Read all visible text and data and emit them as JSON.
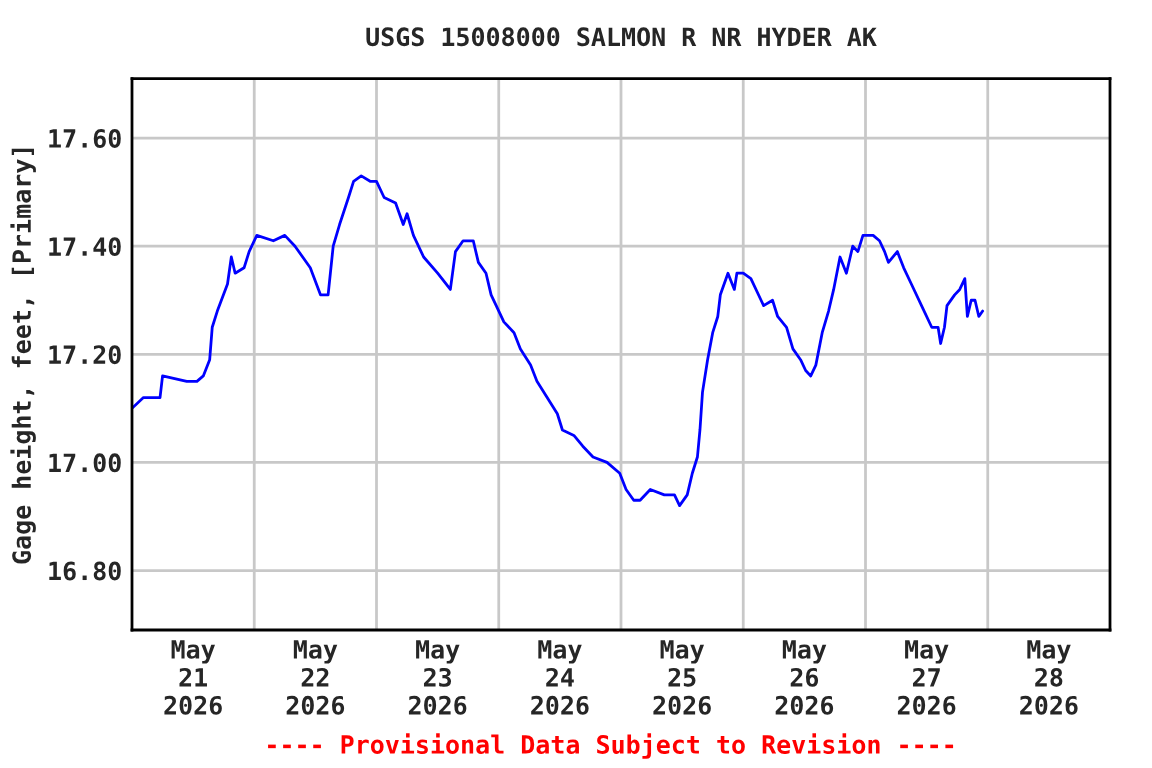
{
  "chart_data": {
    "type": "line",
    "title": "USGS 15008000 SALMON R NR HYDER AK",
    "ylabel": "Gage height, feet, [Primary]",
    "annotations": [
      "---- Provisional Data Subject to Revision ----"
    ],
    "x": [
      "2026-05-21T00:00",
      "2026-05-21T02:15",
      "2026-05-21T05:30",
      "2026-05-21T06:00",
      "2026-05-21T10:45",
      "2026-05-21T12:45",
      "2026-05-21T14:00",
      "2026-05-21T15:15",
      "2026-05-21T15:45",
      "2026-05-21T16:45",
      "2026-05-21T18:45",
      "2026-05-21T19:30",
      "2026-05-21T20:15",
      "2026-05-21T22:00",
      "2026-05-21T23:00",
      "2026-05-22T00:30",
      "2026-05-22T03:45",
      "2026-05-22T06:00",
      "2026-05-22T08:00",
      "2026-05-22T11:00",
      "2026-05-22T13:00",
      "2026-05-22T14:30",
      "2026-05-22T15:30",
      "2026-05-22T16:45",
      "2026-05-22T18:30",
      "2026-05-22T19:30",
      "2026-05-22T21:00",
      "2026-05-22T22:45",
      "2026-05-23T00:00",
      "2026-05-23T01:30",
      "2026-05-23T03:45",
      "2026-05-23T05:15",
      "2026-05-23T06:00",
      "2026-05-23T07:15",
      "2026-05-23T09:15",
      "2026-05-23T12:00",
      "2026-05-23T14:30",
      "2026-05-23T15:30",
      "2026-05-23T17:00",
      "2026-05-23T19:00",
      "2026-05-23T20:00",
      "2026-05-23T21:30",
      "2026-05-23T22:30",
      "2026-05-23T23:30",
      "2026-05-24T01:00",
      "2026-05-24T03:00",
      "2026-05-24T04:15",
      "2026-05-24T06:15",
      "2026-05-24T07:30",
      "2026-05-24T09:30",
      "2026-05-24T11:30",
      "2026-05-24T12:30",
      "2026-05-24T14:45",
      "2026-05-24T16:30",
      "2026-05-24T18:30",
      "2026-05-24T21:15",
      "2026-05-24T23:45",
      "2026-05-25T01:00",
      "2026-05-25T02:30",
      "2026-05-25T03:30",
      "2026-05-25T03:45",
      "2026-05-25T05:45",
      "2026-05-25T08:30",
      "2026-05-25T10:30",
      "2026-05-25T11:30",
      "2026-05-25T13:00",
      "2026-05-25T14:00",
      "2026-05-25T15:00",
      "2026-05-25T15:30",
      "2026-05-25T16:00",
      "2026-05-25T17:00",
      "2026-05-25T18:00",
      "2026-05-25T19:00",
      "2026-05-25T19:30",
      "2026-05-25T21:00",
      "2026-05-25T22:15",
      "2026-05-25T22:45",
      "2026-05-26T00:00",
      "2026-05-26T01:30",
      "2026-05-26T03:30",
      "2026-05-26T04:00",
      "2026-05-26T05:45",
      "2026-05-26T06:45",
      "2026-05-26T08:30",
      "2026-05-26T09:45",
      "2026-05-26T11:15",
      "2026-05-26T12:15",
      "2026-05-26T13:15",
      "2026-05-26T14:15",
      "2026-05-26T15:30",
      "2026-05-26T16:45",
      "2026-05-26T17:45",
      "2026-05-26T19:00",
      "2026-05-26T20:15",
      "2026-05-26T21:30",
      "2026-05-26T22:30",
      "2026-05-26T23:30",
      "2026-05-27T01:30",
      "2026-05-27T02:45",
      "2026-05-27T03:45",
      "2026-05-27T04:30",
      "2026-05-27T06:15",
      "2026-05-27T07:30",
      "2026-05-27T09:00",
      "2026-05-27T11:00",
      "2026-05-27T13:00",
      "2026-05-27T14:15",
      "2026-05-27T14:45",
      "2026-05-27T15:30",
      "2026-05-27T16:00",
      "2026-05-27T17:30",
      "2026-05-27T18:30",
      "2026-05-27T19:30",
      "2026-05-27T20:00",
      "2026-05-27T20:45",
      "2026-05-27T21:30",
      "2026-05-27T22:15",
      "2026-05-27T23:00"
    ],
    "series": [
      {
        "color": "#0000ff",
        "values": [
          17.1,
          17.12,
          17.12,
          17.16,
          17.15,
          17.15,
          17.16,
          17.19,
          17.25,
          17.28,
          17.33,
          17.38,
          17.35,
          17.36,
          17.39,
          17.42,
          17.41,
          17.42,
          17.4,
          17.36,
          17.31,
          17.31,
          17.4,
          17.44,
          17.49,
          17.52,
          17.53,
          17.52,
          17.52,
          17.49,
          17.48,
          17.44,
          17.46,
          17.42,
          17.38,
          17.35,
          17.32,
          17.39,
          17.41,
          17.41,
          17.37,
          17.35,
          17.31,
          17.29,
          17.26,
          17.24,
          17.21,
          17.18,
          17.15,
          17.12,
          17.09,
          17.06,
          17.05,
          17.03,
          17.01,
          17.0,
          16.98,
          16.95,
          16.93,
          16.93,
          16.93,
          16.95,
          16.94,
          16.94,
          16.92,
          16.94,
          16.98,
          17.01,
          17.06,
          17.13,
          17.19,
          17.24,
          17.27,
          17.31,
          17.35,
          17.32,
          17.35,
          17.35,
          17.34,
          17.3,
          17.29,
          17.3,
          17.27,
          17.25,
          17.21,
          17.19,
          17.17,
          17.16,
          17.18,
          17.24,
          17.28,
          17.32,
          17.38,
          17.35,
          17.4,
          17.39,
          17.42,
          17.42,
          17.41,
          17.39,
          17.37,
          17.39,
          17.36,
          17.33,
          17.29,
          17.25,
          17.25,
          17.22,
          17.25,
          17.29,
          17.31,
          17.32,
          17.34,
          17.27,
          17.3,
          17.3,
          17.27,
          17.28
        ]
      }
    ],
    "xlim": [
      "2026-05-21T00:00",
      "2026-05-29T00:00"
    ],
    "xticks": [
      {
        "value": "2026-05-22",
        "label": null
      },
      {
        "value": "2026-05-23",
        "label": null
      },
      {
        "value": "2026-05-24",
        "label": null
      },
      {
        "value": "2026-05-25",
        "label": null
      },
      {
        "value": "2026-05-26",
        "label": null
      },
      {
        "value": "2026-05-27",
        "label": null
      },
      {
        "value": "2026-05-28",
        "label": null
      },
      {
        "value": "2026-05-21T12:00",
        "label": "May\n21\n2026"
      },
      {
        "value": "2026-05-22T12:00",
        "label": "May\n22\n2026"
      },
      {
        "value": "2026-05-23T12:00",
        "label": "May\n23\n2026"
      },
      {
        "value": "2026-05-24T12:00",
        "label": "May\n24\n2026"
      },
      {
        "value": "2026-05-25T12:00",
        "label": "May\n25\n2026"
      },
      {
        "value": "2026-05-26T12:00",
        "label": "May\n26\n2026"
      },
      {
        "value": "2026-05-27T12:00",
        "label": "May\n27\n2026"
      },
      {
        "value": "2026-05-28T12:00",
        "label": "May\n28\n2026"
      }
    ],
    "ylim": [
      16.69,
      17.71
    ],
    "yticks": [
      {
        "value": 16.8,
        "label": "16.80"
      },
      {
        "value": 17.0,
        "label": "17.00"
      },
      {
        "value": 17.2,
        "label": "17.20"
      },
      {
        "value": 17.4,
        "label": "17.40"
      },
      {
        "value": 17.6,
        "label": "17.60"
      }
    ],
    "grid": true,
    "marker": "none",
    "line_style": "solid",
    "legend": false
  }
}
